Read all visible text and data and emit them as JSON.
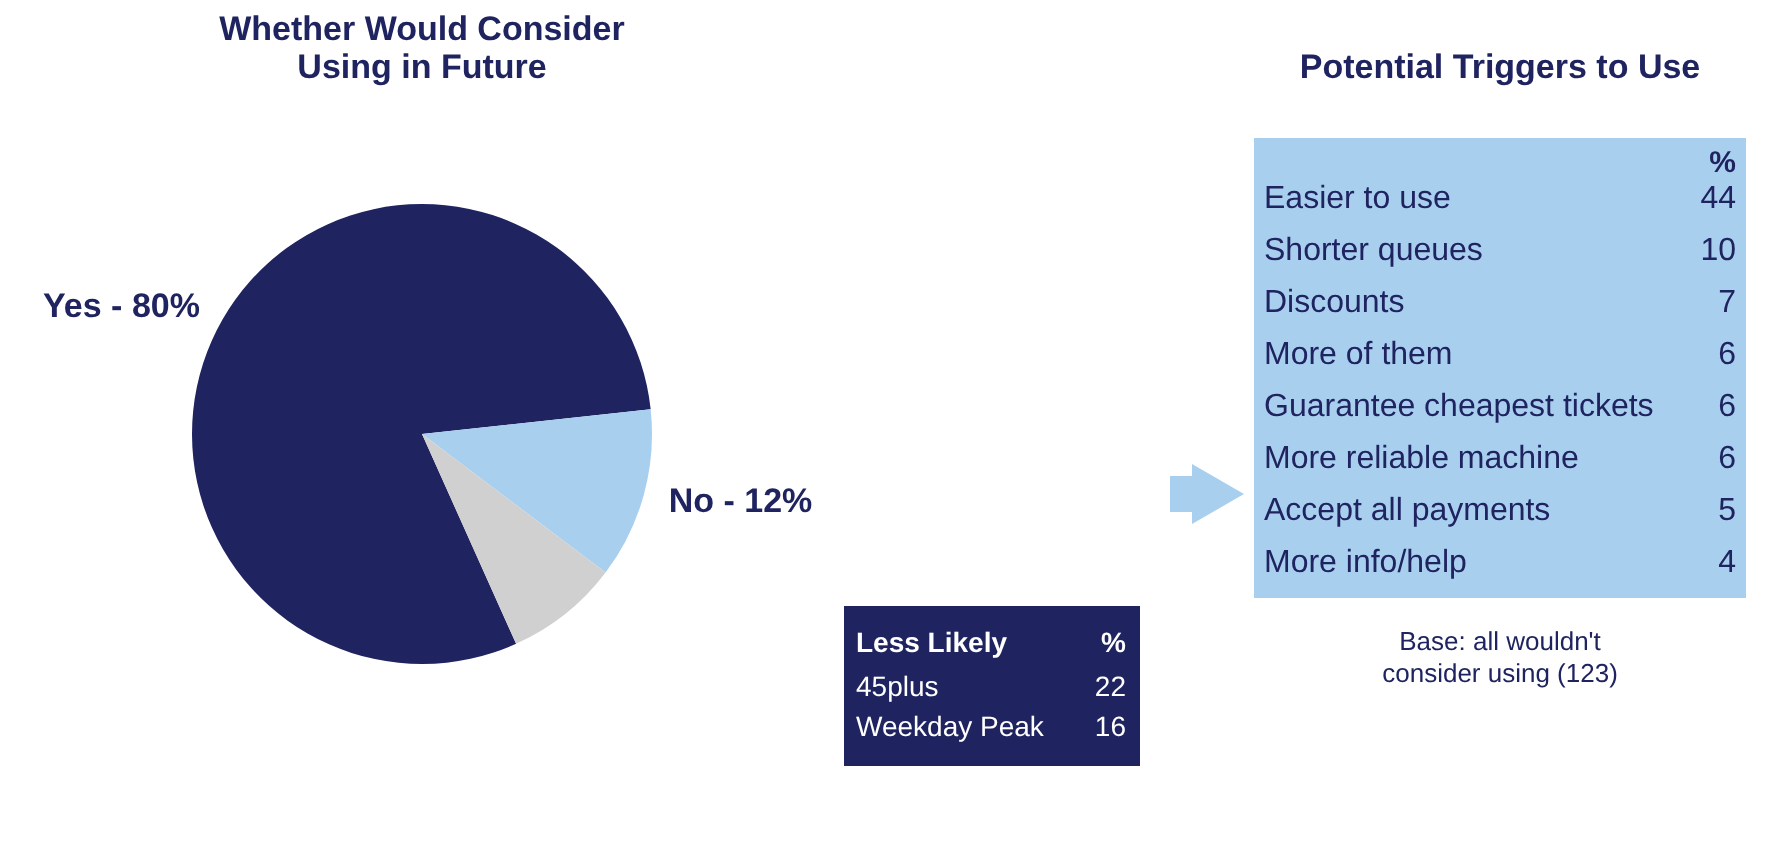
{
  "chart_data": [
    {
      "type": "pie",
      "title": "Whether Would Consider Using in Future",
      "categories": [
        "Yes - 80%",
        "No - 12%",
        null
      ],
      "values": [
        80,
        12,
        8
      ],
      "colors": [
        "#1f2460",
        "#a9cfee",
        "#d0d0d0"
      ],
      "legend": false
    },
    {
      "type": "other",
      "title": "Less Likely",
      "ylabel": "%",
      "categories": [
        "45plus",
        "Weekday Peak"
      ],
      "values": [
        22,
        16
      ],
      "data_labels": true,
      "color": "#1f2460"
    },
    {
      "type": "other",
      "title": "Potential Triggers to Use",
      "ylabel": "%",
      "categories": [
        "Easier to use",
        "Shorter queues",
        "Discounts",
        "More of them",
        "Guarantee cheapest tickets",
        "More reliable machine",
        "Accept all payments",
        "More info/help"
      ],
      "values": [
        44,
        10,
        7,
        6,
        6,
        6,
        5,
        4
      ],
      "data_labels": true,
      "color": "#a8d0ee",
      "annotations": [
        "Base: all wouldn't consider using (123)"
      ]
    }
  ]
}
